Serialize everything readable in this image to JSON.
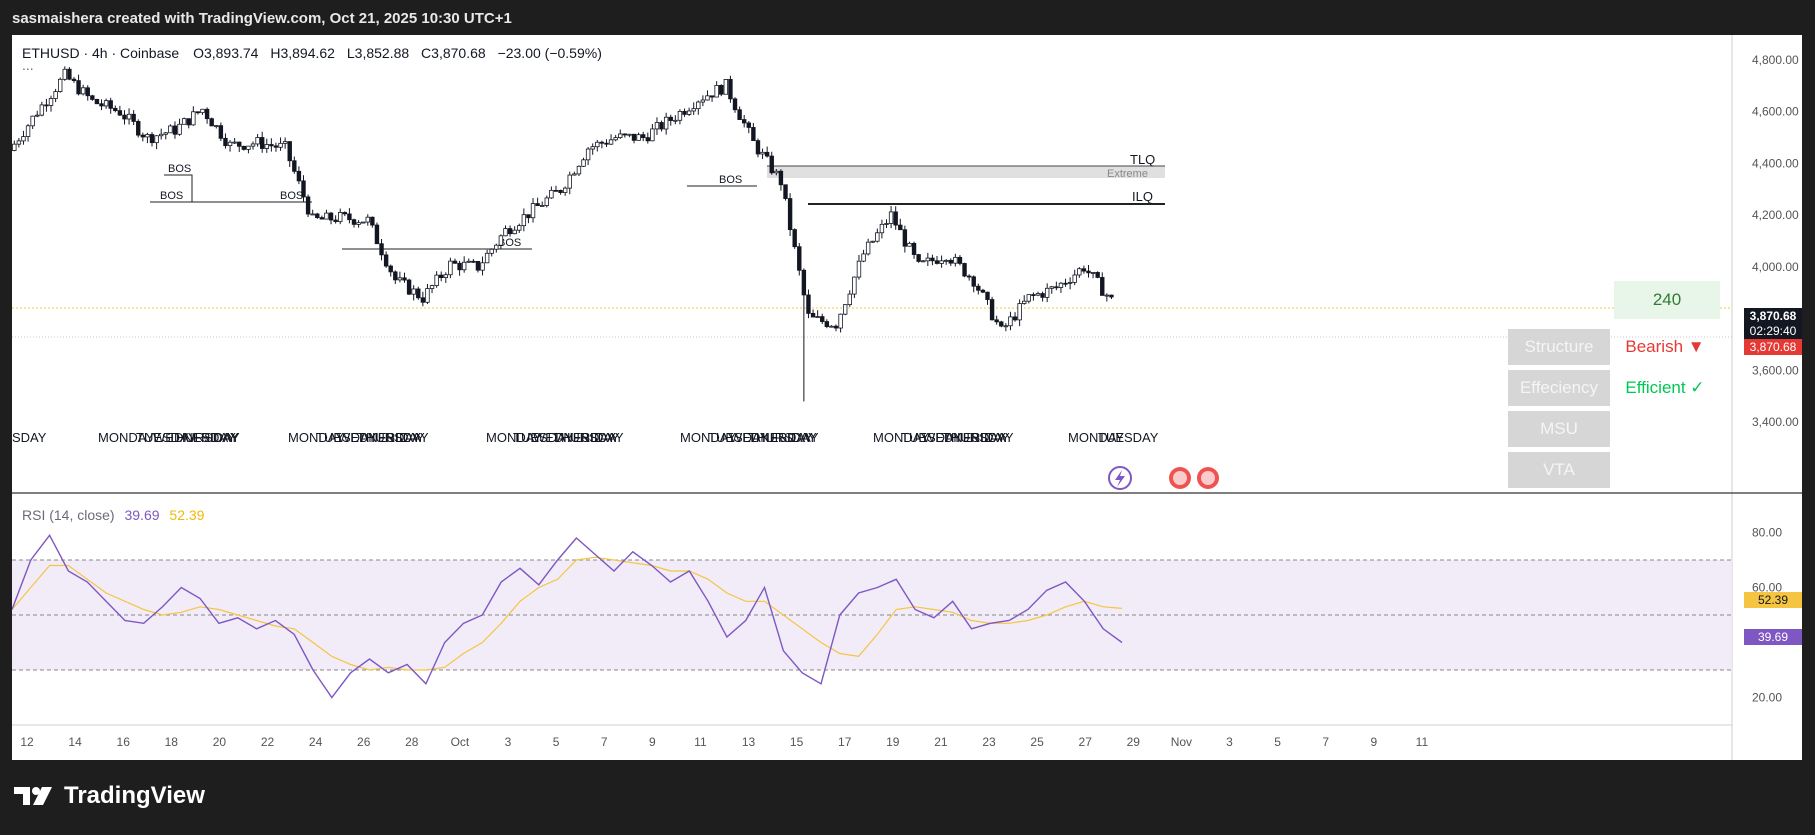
{
  "header": "sasmaishera created with TradingView.com, Oct 21, 2025 10:30 UTC+1",
  "legend": {
    "symbol": "ETHUSD · 4h · Coinbase",
    "o_label": "O",
    "o": "3,893.74",
    "h_label": "H",
    "h": "3,894.62",
    "l_label": "L",
    "l": "3,852.88",
    "c_label": "C",
    "c": "3,870.68",
    "change": "−23.00 (−0.59%)",
    "more": "..."
  },
  "rsi_legend": {
    "name": "RSI (14, close)",
    "rsi": "39.69",
    "ma": "52.39"
  },
  "panel": {
    "timeframe": "240",
    "rows": [
      {
        "label": "Structure",
        "value": "Bearish ▼",
        "color": "#e53935"
      },
      {
        "label": "Effeciency",
        "value": "Efficient ✓",
        "color": "#00c853"
      },
      {
        "label": "MSU",
        "value": ""
      },
      {
        "label": "VTA",
        "value": ""
      }
    ]
  },
  "price_tags": {
    "last": "3,870.68",
    "countdown": "02:29:40",
    "close": "3,870.68",
    "rsi": "39.69",
    "rsi_ma": "52.39"
  },
  "chart_labels": {
    "tlq": "TLQ",
    "extreme": "Extreme",
    "ilq": "ILQ",
    "bos": "BOS",
    "day_labels": [
      "SDAY",
      "MONDAY",
      "TUESDAY",
      "WEDNESDAY",
      "THURSDAY",
      "FRIDAY",
      "TUESDAY",
      "MONDAY",
      "TUESDAY"
    ]
  },
  "footer": "TradingView",
  "chart_data": [
    {
      "type": "candlestick",
      "symbol": "ETHUSD",
      "interval": "4h",
      "ylim": [
        3400,
        4850
      ],
      "y_ticks": [
        "4,800.00",
        "4,600.00",
        "4,400.00",
        "4,200.00",
        "4,000.00",
        "3,800.00",
        "3,600.00",
        "3,400.00"
      ],
      "x_ticks": [
        "12",
        "14",
        "16",
        "18",
        "20",
        "22",
        "24",
        "26",
        "28",
        "Oct",
        "3",
        "5",
        "7",
        "9",
        "11",
        "13",
        "15",
        "17",
        "19",
        "21",
        "23",
        "25",
        "27",
        "29",
        "Nov",
        "3",
        "5",
        "7",
        "9",
        "11"
      ],
      "close_path": [
        [
          "Sep 11",
          4450
        ],
        [
          "Sep 12",
          4600
        ],
        [
          "Sep 13",
          4740
        ],
        [
          "Sep 14",
          4640
        ],
        [
          "Sep 15",
          4600
        ],
        [
          "Sep 16",
          4500
        ],
        [
          "Sep 17",
          4530
        ],
        [
          "Sep 18",
          4610
        ],
        [
          "Sep 19",
          4470
        ],
        [
          "Sep 20",
          4480
        ],
        [
          "Sep 21",
          4460
        ],
        [
          "Sep 22",
          4180
        ],
        [
          "Sep 23",
          4190
        ],
        [
          "Sep 24",
          4180
        ],
        [
          "Sep 25",
          3950
        ],
        [
          "Sep 26",
          3880
        ],
        [
          "Sep 27",
          4010
        ],
        [
          "Sep 28",
          4000
        ],
        [
          "Sep 29",
          4140
        ],
        [
          "Sep 30",
          4220
        ],
        [
          "Oct 1",
          4300
        ],
        [
          "Oct 2",
          4460
        ],
        [
          "Oct 3",
          4500
        ],
        [
          "Oct 4",
          4500
        ],
        [
          "Oct 5",
          4570
        ],
        [
          "Oct 6",
          4650
        ],
        [
          "Oct 7",
          4700
        ],
        [
          "Oct 8",
          4480
        ],
        [
          "Oct 9",
          4330
        ],
        [
          "Oct 10",
          3800
        ],
        [
          "Oct 11",
          3780
        ],
        [
          "Oct 12",
          4050
        ],
        [
          "Oct 13",
          4200
        ],
        [
          "Oct 14",
          4000
        ],
        [
          "Oct 15",
          4050
        ],
        [
          "Oct 16",
          3950
        ],
        [
          "Oct 17",
          3750
        ],
        [
          "Oct 18",
          3880
        ],
        [
          "Oct 19",
          3920
        ],
        [
          "Oct 20",
          4000
        ],
        [
          "Oct 21",
          3870.68
        ]
      ]
    },
    {
      "type": "line",
      "name": "RSI (14, close)",
      "ylim": [
        10,
        90
      ],
      "y_ticks": [
        "80.00",
        "60.00",
        "20.00"
      ],
      "bands": [
        70,
        50,
        30
      ],
      "series": [
        {
          "values": [
            52,
            70,
            79,
            66,
            62,
            55,
            48,
            47,
            53,
            60,
            56,
            47,
            49,
            45,
            48,
            43,
            30,
            20,
            29,
            34,
            29,
            32,
            25,
            40,
            47,
            50,
            62,
            67,
            61,
            70,
            78,
            72,
            66,
            73,
            68,
            62,
            66,
            55,
            42,
            48,
            60,
            37,
            29,
            25,
            50,
            58,
            60,
            63,
            52,
            49,
            55,
            45,
            47,
            48,
            52,
            59,
            62,
            55,
            45,
            40
          ]
        },
        {
          "values": [
            52,
            60,
            68,
            68,
            63,
            58,
            55,
            52,
            50,
            51,
            53,
            52,
            50,
            48,
            46,
            45,
            40,
            35,
            32,
            30,
            31,
            30,
            30,
            31,
            36,
            40,
            47,
            55,
            60,
            63,
            70,
            71,
            70,
            69,
            68,
            66,
            66,
            63,
            58,
            55,
            55,
            50,
            45,
            40,
            36,
            35,
            43,
            52,
            53,
            52,
            51,
            48,
            47,
            47,
            48,
            50,
            53,
            55,
            53,
            52.39
          ]
        }
      ]
    }
  ]
}
